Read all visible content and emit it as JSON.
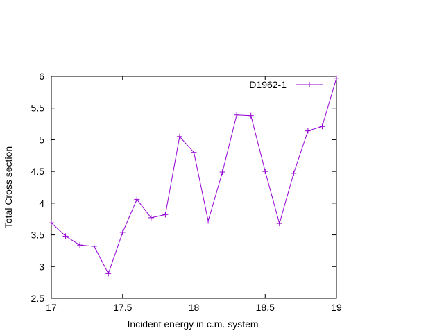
{
  "chart_data": {
    "type": "line",
    "xlabel": "Incident energy in c.m. system",
    "ylabel": "Total Cross section",
    "xlim": [
      17,
      19
    ],
    "ylim": [
      2.5,
      6
    ],
    "xticks": [
      17,
      17.5,
      18,
      18.5,
      19
    ],
    "yticks": [
      2.5,
      3,
      3.5,
      4,
      4.5,
      5,
      5.5,
      6
    ],
    "xtick_labels": [
      "17",
      "17.5",
      "18",
      "18.5",
      "19"
    ],
    "ytick_labels": [
      "2.5",
      "3",
      "3.5",
      "4",
      "4.5",
      "5",
      "5.5",
      "6"
    ],
    "grid": false,
    "legend_position": "top-right",
    "series": [
      {
        "name": "D1962-1",
        "color": "#9400d3",
        "marker": "plus",
        "x": [
          17.0,
          17.1,
          17.2,
          17.3,
          17.4,
          17.5,
          17.6,
          17.7,
          17.8,
          17.9,
          18.0,
          18.1,
          18.2,
          18.3,
          18.4,
          18.5,
          18.6,
          18.7,
          18.8,
          18.9,
          19.0
        ],
        "y": [
          3.69,
          3.48,
          3.34,
          3.32,
          2.89,
          3.54,
          4.06,
          3.77,
          3.82,
          5.05,
          4.8,
          3.72,
          4.49,
          5.39,
          5.38,
          4.5,
          3.68,
          4.47,
          5.14,
          5.21,
          5.97
        ]
      }
    ]
  }
}
